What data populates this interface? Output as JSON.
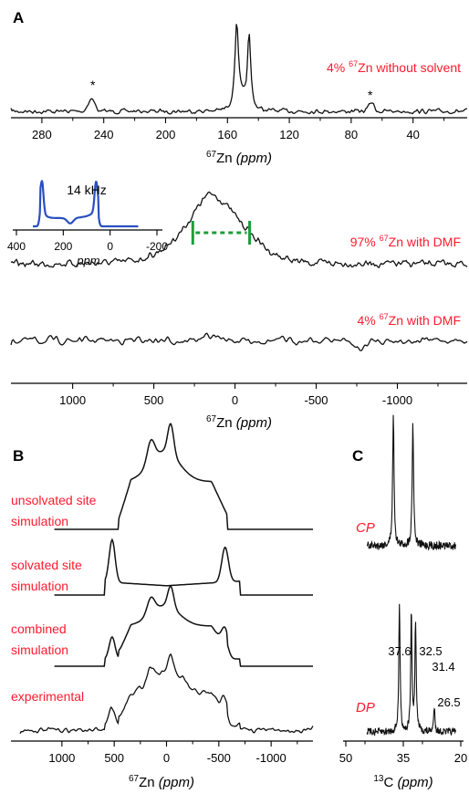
{
  "colors": {
    "trace": "#111111",
    "label": "#ff1a2e",
    "inset": "#2a4fbf",
    "marker": "#1a9e3a"
  },
  "chart_data": [
    {
      "panel": "A",
      "type": "line",
      "xlabel_iso": "67",
      "xlabel": "Zn",
      "xunit": "(ppm)",
      "xticks": [
        "280",
        "240",
        "200",
        "160",
        "120",
        "80",
        "40"
      ],
      "xlim": [
        300,
        5
      ],
      "series": [
        {
          "name": "4% 67Zn without solvent",
          "name_parts": [
            "4% ",
            "67",
            "Zn without solvent"
          ]
        }
      ],
      "peaks": [
        152,
        148
      ],
      "spinning_sidebands": [
        {
          "x": 248,
          "label": "*"
        },
        {
          "x": 67,
          "label": "*"
        }
      ]
    },
    {
      "panel": "A-inset",
      "type": "line",
      "label": "14 kHz",
      "xlabel": "ppm",
      "xticks": [
        "400",
        "200",
        "0",
        "-200"
      ],
      "xlim": [
        400,
        -200
      ],
      "horns": [
        290,
        60
      ]
    },
    {
      "panel": "A-lower",
      "type": "line",
      "xlabel_iso": "67",
      "xlabel": "Zn",
      "xunit": "(ppm)",
      "xticks": [
        "1000",
        "500",
        "0",
        "-500",
        "-1000"
      ],
      "xlim": [
        1380,
        -1430
      ],
      "series": [
        {
          "name": "97% 67Zn with DMF",
          "name_parts": [
            "97% ",
            "67",
            "Zn with DMF"
          ],
          "center": 120
        },
        {
          "name": "4% 67Zn with DMF",
          "name_parts": [
            "4% ",
            "67",
            "Zn with DMF"
          ]
        }
      ],
      "marker_range": [
        260,
        -90
      ]
    },
    {
      "panel": "B",
      "type": "line",
      "xlabel_iso": "67",
      "xlabel": "Zn",
      "xunit": "(ppm)",
      "xticks": [
        "1000",
        "500",
        "0",
        "-500",
        "-1000"
      ],
      "xlim": [
        1400,
        -1400
      ],
      "series": [
        {
          "name": "unsolvated site simulation",
          "label_lines": [
            "unsolvated site",
            "simulation"
          ]
        },
        {
          "name": "solvated site simulation",
          "label_lines": [
            "solvated site",
            "simulation"
          ]
        },
        {
          "name": "combined simulation",
          "label_lines": [
            "combined",
            "simulation"
          ]
        },
        {
          "name": "experimental",
          "label_lines": [
            "experimental"
          ]
        }
      ]
    },
    {
      "panel": "C",
      "type": "line",
      "xlabel_iso": "13",
      "xlabel": "C",
      "xunit": "(ppm)",
      "xticks": [
        "50",
        "35",
        "20"
      ],
      "xlim": [
        50,
        20
      ],
      "series": [
        {
          "name": "CP",
          "peaks": [
            37.6,
            32.5
          ]
        },
        {
          "name": "DP",
          "peaks": [
            37.6,
            32.5,
            31.4,
            26.5
          ]
        }
      ],
      "peak_labels": [
        "37.6",
        "32.5",
        "31.4",
        "26.5"
      ]
    }
  ],
  "panel_labels": {
    "a": "A",
    "b": "B",
    "c": "C"
  }
}
